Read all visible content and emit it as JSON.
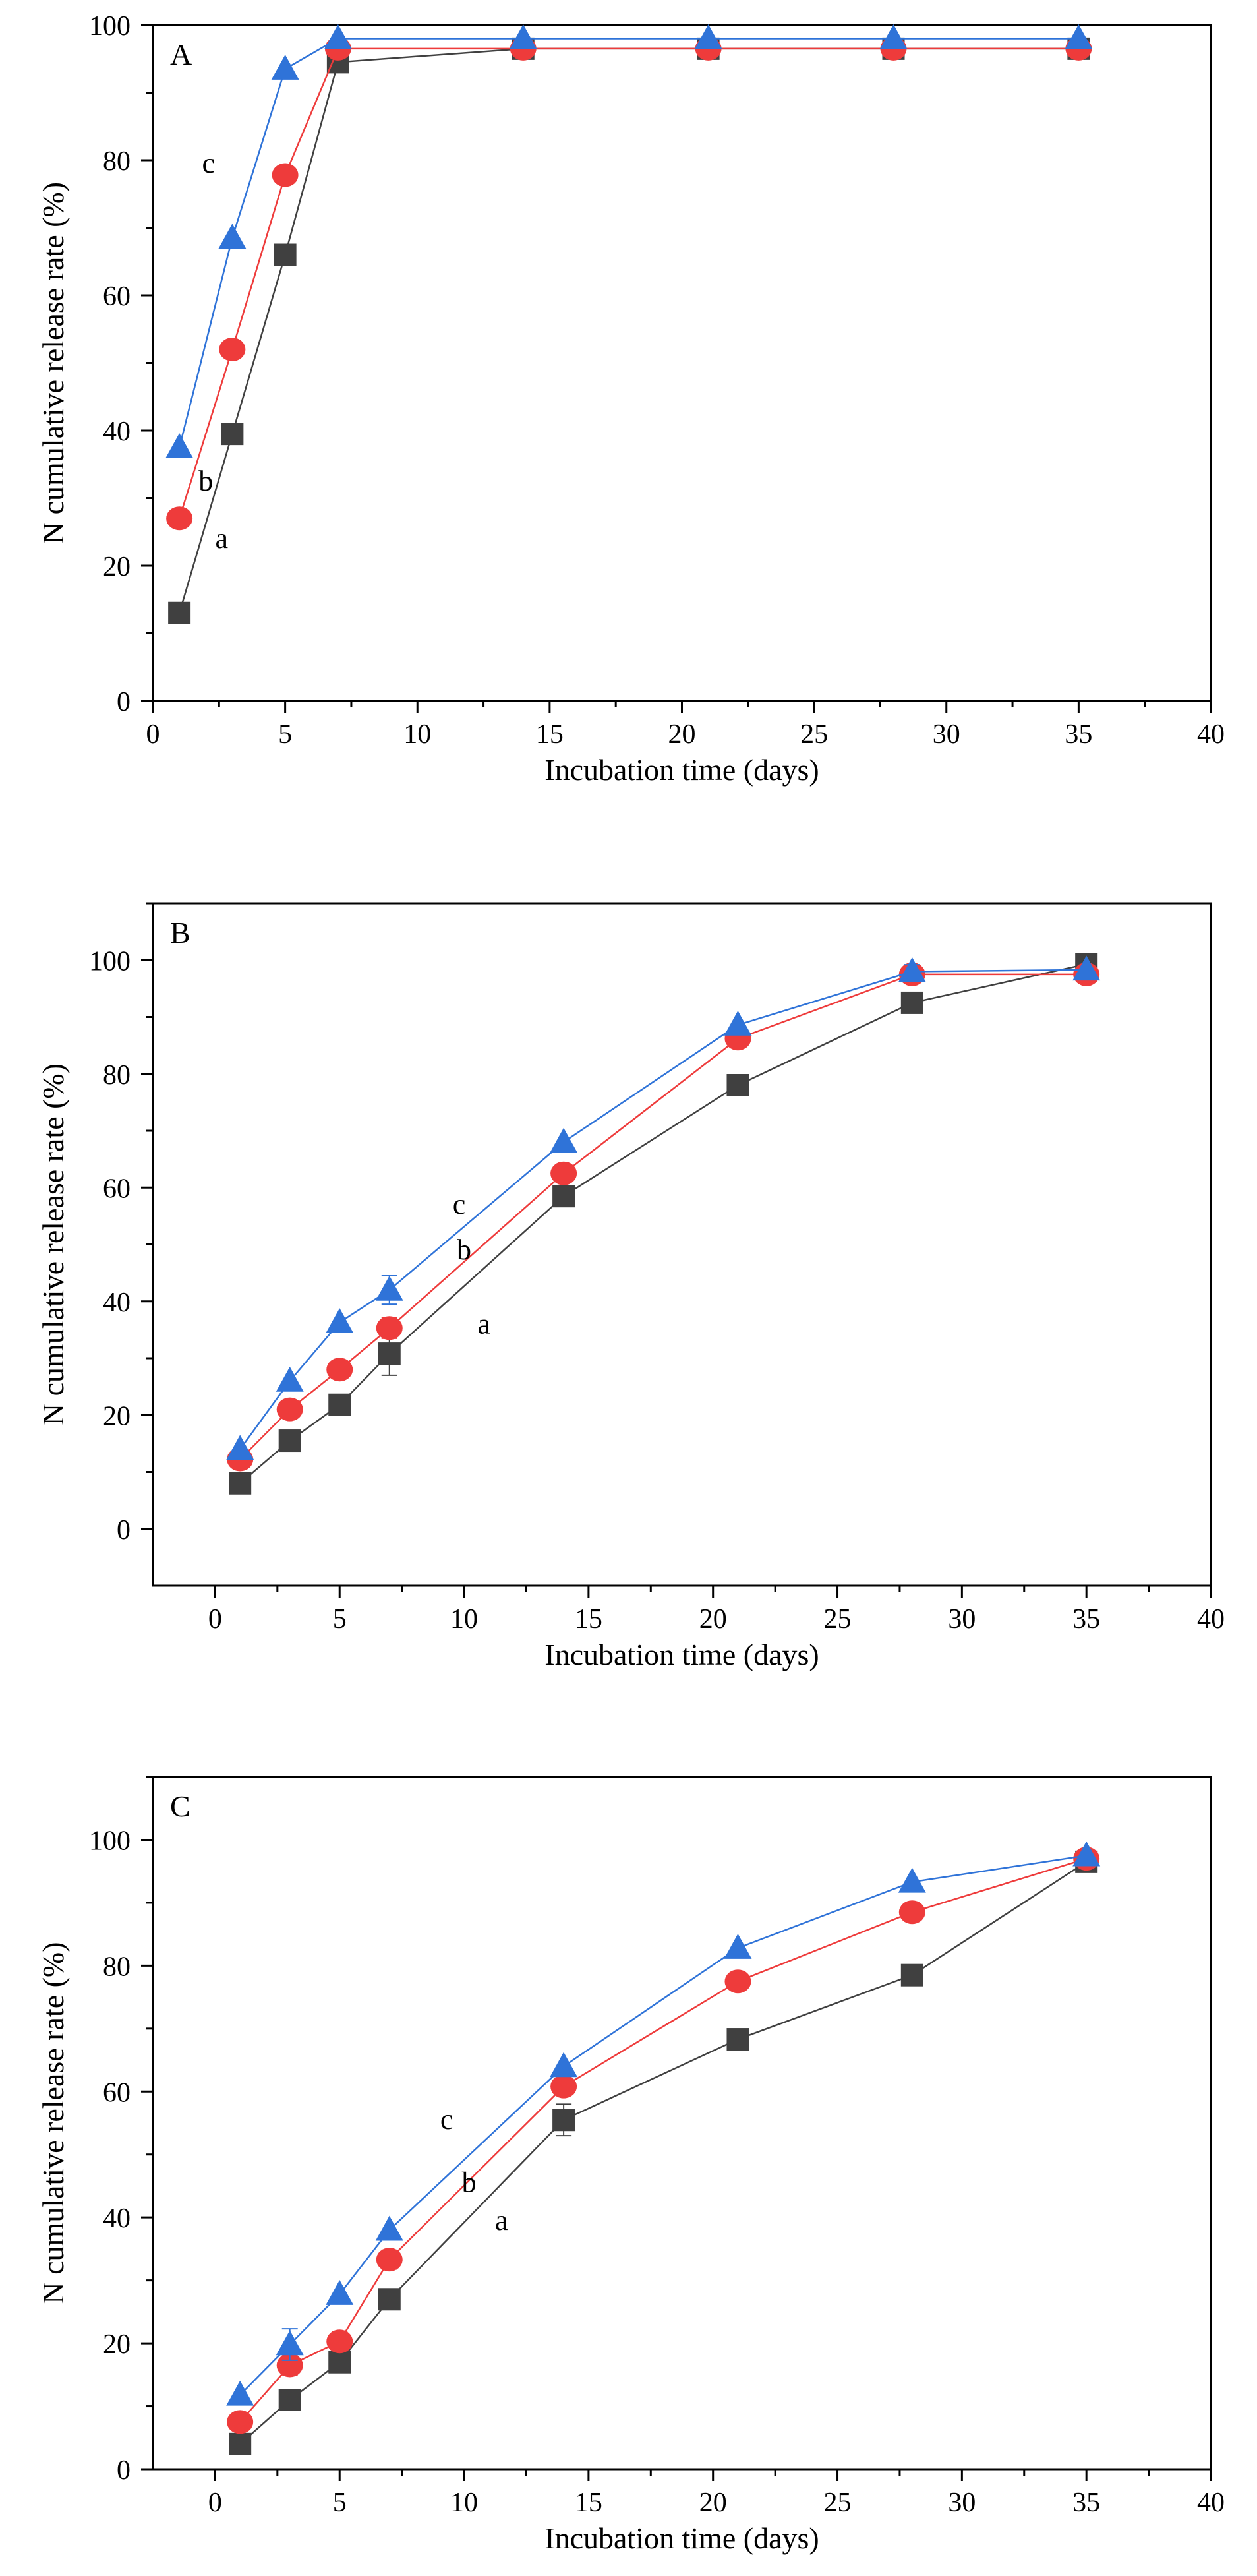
{
  "figure": {
    "series_colors": {
      "a": "#404040",
      "b": "#ee3b3b",
      "c": "#2f73d8"
    },
    "marker_shapes": {
      "a": "square",
      "b": "circle",
      "c": "triangle"
    }
  },
  "chart_data": [
    {
      "type": "line",
      "panel": "A",
      "xlabel": "Incubation time (days)",
      "ylabel": "N cumulative release rate (%)",
      "xlim": [
        0,
        40
      ],
      "ylim": [
        0,
        100
      ],
      "xticks": [
        0,
        5,
        10,
        15,
        20,
        25,
        30,
        35,
        40
      ],
      "yticks": [
        0,
        20,
        40,
        60,
        80,
        100
      ],
      "x": [
        1,
        3,
        5,
        7,
        14,
        21,
        28,
        35
      ],
      "series": [
        {
          "name": "a",
          "values": [
            13,
            39.5,
            66,
            94.5,
            96.5,
            96.5,
            96.5,
            96.5
          ],
          "errors": [
            0,
            0,
            0,
            0,
            0,
            0,
            0,
            0
          ]
        },
        {
          "name": "b",
          "values": [
            27,
            52,
            77.8,
            96.5,
            96.5,
            96.5,
            96.5,
            96.5
          ],
          "errors": [
            0,
            1.2,
            0,
            0,
            0,
            0,
            0,
            0
          ]
        },
        {
          "name": "c",
          "values": [
            37.5,
            68.5,
            93.5,
            98,
            98,
            98,
            98,
            98
          ],
          "errors": [
            0,
            0,
            0,
            0,
            0,
            0,
            0,
            0
          ]
        }
      ],
      "series_labels": [
        {
          "text": "a",
          "x": 2.6,
          "y": 24
        },
        {
          "text": "b",
          "x": 2.0,
          "y": 32.5
        },
        {
          "text": "c",
          "x": 2.1,
          "y": 79.5
        }
      ]
    },
    {
      "type": "line",
      "panel": "B",
      "xlabel": "Incubation time (days)",
      "ylabel": "N cumulative release rate (%)",
      "xlim": [
        -2.5,
        40
      ],
      "ylim": [
        -10,
        110
      ],
      "xticks": [
        0,
        5,
        10,
        15,
        20,
        25,
        30,
        35,
        40
      ],
      "yticks": [
        0,
        20,
        40,
        60,
        80,
        100
      ],
      "x": [
        1,
        3,
        5,
        7,
        14,
        21,
        28,
        35
      ],
      "series": [
        {
          "name": "a",
          "values": [
            8,
            15.5,
            21.8,
            30.8,
            58.5,
            78,
            92.5,
            99.3
          ],
          "errors": [
            0,
            0,
            0,
            3.8,
            1.2,
            0,
            0,
            0
          ]
        },
        {
          "name": "b",
          "values": [
            12.2,
            21,
            28,
            35.3,
            62.5,
            86.2,
            97.5,
            97.5
          ],
          "errors": [
            0,
            0,
            0,
            1.8,
            1.5,
            0,
            1.5,
            1.2
          ]
        },
        {
          "name": "c",
          "values": [
            14,
            26,
            36.3,
            42,
            68,
            88.6,
            98,
            98.3
          ],
          "errors": [
            0,
            0,
            0,
            2.5,
            0,
            0,
            1.2,
            0
          ]
        }
      ],
      "series_labels": [
        {
          "text": "a",
          "x": 10.8,
          "y": 36
        },
        {
          "text": "b",
          "x": 10.0,
          "y": 49
        },
        {
          "text": "c",
          "x": 9.8,
          "y": 57
        }
      ]
    },
    {
      "type": "line",
      "panel": "C",
      "xlabel": "Incubation time (days)",
      "ylabel": "N cumulative release rate (%)",
      "xlim": [
        -2.5,
        40
      ],
      "ylim": [
        0,
        110
      ],
      "xticks": [
        0,
        5,
        10,
        15,
        20,
        25,
        30,
        35,
        40
      ],
      "yticks": [
        0,
        20,
        40,
        60,
        80,
        100
      ],
      "x": [
        1,
        3,
        5,
        7,
        14,
        21,
        28,
        35
      ],
      "series": [
        {
          "name": "a",
          "values": [
            4,
            11,
            17,
            27,
            55.5,
            68.3,
            78.5,
            96.5
          ],
          "errors": [
            0,
            0,
            0,
            0,
            2.5,
            0,
            0,
            0
          ]
        },
        {
          "name": "b",
          "values": [
            7.5,
            16.5,
            20.3,
            33.3,
            60.8,
            77.5,
            88.5,
            97
          ],
          "errors": [
            0,
            1.5,
            1.5,
            1.5,
            0,
            0,
            0,
            0
          ]
        },
        {
          "name": "c",
          "values": [
            11.8,
            19.8,
            27.8,
            38,
            64,
            82.8,
            93.3,
            97.5
          ],
          "errors": [
            0,
            2.5,
            0,
            0,
            0,
            0,
            0,
            0
          ]
        }
      ],
      "series_labels": [
        {
          "text": "a",
          "x": 11.5,
          "y": 39.5
        },
        {
          "text": "b",
          "x": 10.2,
          "y": 45.5
        },
        {
          "text": "c",
          "x": 9.3,
          "y": 55.5
        }
      ]
    }
  ]
}
